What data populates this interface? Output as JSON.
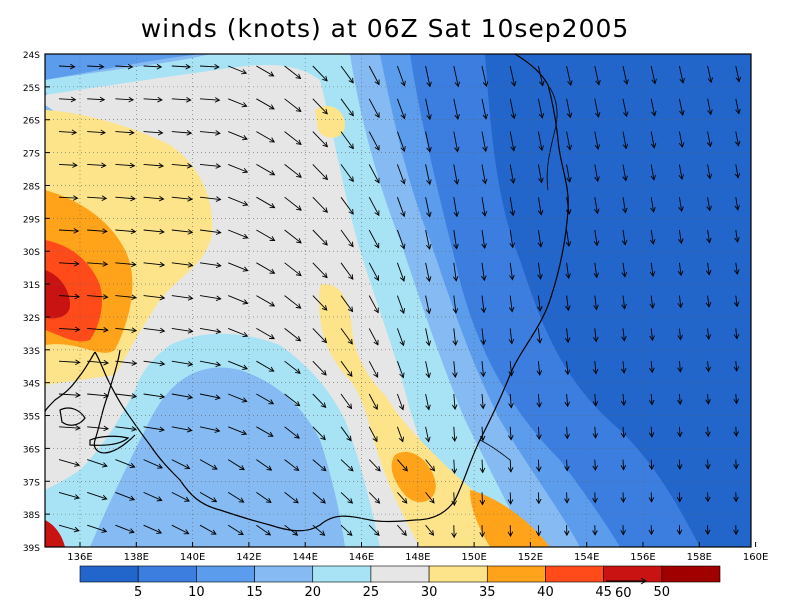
{
  "title": "winds (knots) at 06Z Sat 10sep2005",
  "axes": {
    "lat_labels": [
      "24S",
      "25S",
      "26S",
      "27S",
      "28S",
      "29S",
      "30S",
      "31S",
      "32S",
      "33S",
      "34S",
      "35S",
      "36S",
      "37S",
      "38S",
      "39S"
    ],
    "lon_labels": [
      "136E",
      "138E",
      "140E",
      "142E",
      "144E",
      "146E",
      "148E",
      "150E",
      "152E",
      "154E",
      "156E",
      "158E",
      "160E"
    ]
  },
  "colorbar": {
    "labels": [
      "5",
      "10",
      "15",
      "20",
      "25",
      "30",
      "35",
      "40",
      "45",
      "50"
    ],
    "colors": [
      "#2266cc",
      "#3c7ee0",
      "#5b9ced",
      "#85baf2",
      "#a7e3f5",
      "#e6e6e6",
      "#fde48a",
      "#ffa31a",
      "#ff4a1a",
      "#c91212",
      "#a00000"
    ]
  },
  "reference_vector": {
    "label": "60"
  },
  "contour_colors": {
    "darkblue": "#2266cc",
    "blue": "#3c7ee0",
    "medblue": "#5b9ced",
    "lightblue": "#85baf2",
    "cyan": "#a7e3f5",
    "gray": "#e6e6e6",
    "yellow": "#fde48a",
    "orange": "#ffa31a",
    "redorange": "#ff4a1a",
    "red": "#c91212"
  }
}
